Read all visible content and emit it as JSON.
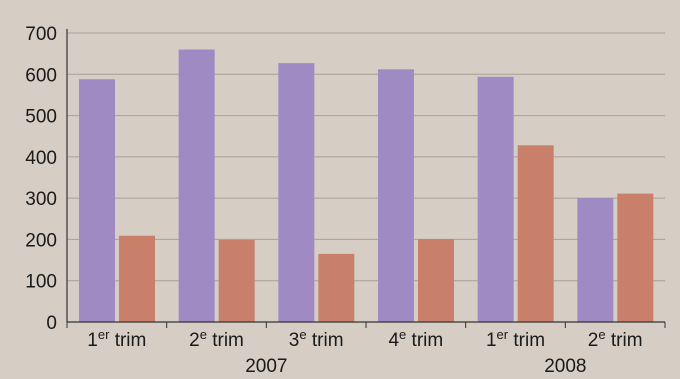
{
  "chart_data": {
    "type": "bar",
    "title": "",
    "xlabel": "",
    "ylabel": "",
    "ylim": [
      0,
      700
    ],
    "yticks": [
      "0",
      "100",
      "200",
      "300",
      "400",
      "500",
      "600",
      "700"
    ],
    "grid": true,
    "categories": [
      {
        "num": "1",
        "sup": "er",
        "rest": " trim"
      },
      {
        "num": "2",
        "sup": "e",
        "rest": " trim"
      },
      {
        "num": "3",
        "sup": "e",
        "rest": " trim"
      },
      {
        "num": "4",
        "sup": "e",
        "rest": " trim"
      },
      {
        "num": "1",
        "sup": "er",
        "rest": " trim"
      },
      {
        "num": "2",
        "sup": "e",
        "rest": " trim"
      }
    ],
    "groups": [
      {
        "label": "2007",
        "span": [
          0,
          3
        ]
      },
      {
        "label": "2008",
        "span": [
          4,
          5
        ]
      }
    ],
    "series": [
      {
        "color": "#a08ac4",
        "values": [
          588,
          660,
          627,
          612,
          594,
          300
        ]
      },
      {
        "color": "#c8806a",
        "values": [
          209,
          199,
          165,
          201,
          428,
          311
        ]
      }
    ]
  },
  "colors": {
    "background": "#d6cdc4",
    "grid": "#a89f96",
    "axis": "#333333"
  }
}
